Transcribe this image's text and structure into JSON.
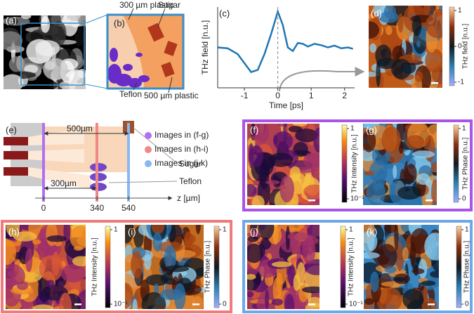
{
  "panels": {
    "a": {
      "label": "(a)"
    },
    "b": {
      "label": "(b)",
      "thin_plastic": "300 µm plastic",
      "sugar": "Sugar",
      "teflon": "Teflon",
      "thick_plastic": "500 µm plastic"
    },
    "c": {
      "label": "(c)"
    },
    "d": {
      "label": "(d)",
      "colorbar_label": "THz field [n.u.]",
      "colorbar_ticks": [
        1,
        0,
        -1
      ]
    },
    "e": {
      "label": "(e)",
      "width_total": "500µm",
      "width_partial": "300µm",
      "legend": [
        "Images in (f-g)",
        "Images in (h-i)",
        "Images in (j-k)"
      ],
      "sugar": "Sugar",
      "teflon": "Teflon",
      "z_ticks": [
        0,
        340,
        540
      ],
      "z_axis": "z [µm]"
    },
    "f": {
      "label": "(f)",
      "colorbar_label": "THz Intensity [n.u.]",
      "colorbar_ticks": [
        1,
        {
          "value": 0.1,
          "label": "10⁻¹"
        }
      ]
    },
    "g": {
      "label": "(g)",
      "colorbar_label": "THz Phase [n.u.]",
      "colorbar_ticks": [
        1,
        0
      ]
    },
    "h": {
      "label": "(h)",
      "colorbar_label": "THz Intensity [n.u.]",
      "colorbar_ticks": [
        1,
        {
          "value": 0.1,
          "label": "10⁻¹"
        }
      ]
    },
    "i": {
      "label": "(i)",
      "colorbar_label": "THz Phase [n.u.]",
      "colorbar_ticks": [
        1,
        0
      ]
    },
    "j": {
      "label": "(j)",
      "colorbar_label": "THz Intensity [n.u.]",
      "colorbar_ticks": [
        1,
        {
          "value": 0.1,
          "label": "10⁻¹"
        }
      ]
    },
    "k": {
      "label": "(k)",
      "colorbar_label": "THz Phase [n.u.]",
      "colorbar_ticks": [
        1,
        0
      ]
    }
  },
  "chart_data": {
    "type": "line",
    "xlabel": "Time [ps]",
    "ylabel": "THz field [n.u.]",
    "color": "#1f77b4",
    "x": [
      -1.8,
      -1.5,
      -1.2,
      -1.0,
      -0.8,
      -0.6,
      -0.4,
      -0.2,
      0,
      0.15,
      0.3,
      0.45,
      0.6,
      0.75,
      0.9,
      1.1,
      1.3,
      1.5,
      1.7,
      1.9,
      2.1,
      2.25
    ],
    "values": [
      0.2,
      0.18,
      0.05,
      -0.15,
      -0.35,
      -0.3,
      0.05,
      0.5,
      1.0,
      0.7,
      0.2,
      0.12,
      0.3,
      0.28,
      0.22,
      0.28,
      0.25,
      0.2,
      0.24,
      0.18,
      0.2,
      0.17
    ],
    "xlim": [
      -1.8,
      2.3
    ],
    "ylim": [
      -0.7,
      1.1
    ],
    "xticks": [
      -1,
      0,
      1,
      2
    ]
  }
}
